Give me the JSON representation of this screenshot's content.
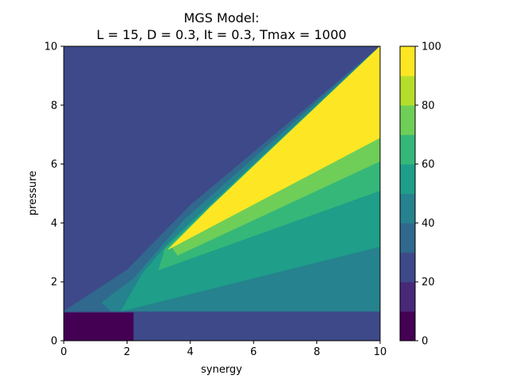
{
  "chart_data": {
    "type": "heatmap",
    "title_lines": [
      "MGS Model:",
      "L = 15, D = 0.3, It = 0.3, Tmax = 1000"
    ],
    "xlabel": "synergy",
    "ylabel": "pressure",
    "xlim": [
      0,
      10
    ],
    "ylim": [
      0,
      10
    ],
    "x_ticks": [
      "0",
      "2",
      "4",
      "6",
      "8",
      "10"
    ],
    "y_ticks": [
      "0",
      "2",
      "4",
      "6",
      "8",
      "10"
    ],
    "colorbar": {
      "range": [
        0,
        100
      ],
      "levels": [
        0,
        10,
        20,
        30,
        40,
        50,
        60,
        70,
        80,
        90,
        100
      ],
      "colors": [
        "#440154",
        "#482878",
        "#3e4989",
        "#31688e",
        "#26828e",
        "#1f9e89",
        "#35b779",
        "#6ece58",
        "#b5de2b",
        "#fde725"
      ],
      "tick_labels": [
        "0",
        "20",
        "40",
        "60",
        "80",
        "100"
      ]
    },
    "regions": [
      {
        "name": "background",
        "level_index": 2,
        "polygon": [
          [
            0,
            0
          ],
          [
            10,
            0
          ],
          [
            10,
            10
          ],
          [
            0,
            10
          ]
        ]
      },
      {
        "name": "low-pressure-corner",
        "level_index": 0,
        "polygon": [
          [
            0,
            0
          ],
          [
            2.2,
            0
          ],
          [
            2.2,
            0.95
          ],
          [
            0,
            0.95
          ]
        ]
      },
      {
        "name": "wedge-35",
        "level_index": 3,
        "polygon": [
          [
            0,
            1
          ],
          [
            10,
            1
          ],
          [
            10,
            10
          ],
          [
            4,
            4.6
          ],
          [
            2,
            2.4
          ],
          [
            0,
            1
          ]
        ]
      },
      {
        "name": "wedge-45",
        "level_index": 4,
        "polygon": [
          [
            1.5,
            1
          ],
          [
            10,
            1
          ],
          [
            10,
            10
          ],
          [
            3.8,
            4.1
          ],
          [
            2.2,
            2.1
          ],
          [
            1.2,
            1.3
          ]
        ]
      },
      {
        "name": "wedge-55",
        "level_index": 5,
        "polygon": [
          [
            1.8,
            1
          ],
          [
            10,
            3.2
          ],
          [
            10,
            10
          ],
          [
            3.3,
            3.3
          ],
          [
            2.5,
            2.3
          ]
        ]
      },
      {
        "name": "wedge-65",
        "level_index": 6,
        "polygon": [
          [
            3,
            2.4
          ],
          [
            10,
            5.1
          ],
          [
            10,
            10
          ],
          [
            3.2,
            3.1
          ]
        ]
      },
      {
        "name": "wedge-75",
        "level_index": 7,
        "polygon": [
          [
            3.6,
            2.9
          ],
          [
            10,
            6.1
          ],
          [
            10,
            10
          ],
          [
            3.4,
            3.2
          ]
        ]
      },
      {
        "name": "wedge-95",
        "level_index": 9,
        "polygon": [
          [
            3.3,
            3.1
          ],
          [
            10,
            6.9
          ],
          [
            10,
            9.85
          ],
          [
            4.6,
            4.5
          ]
        ]
      },
      {
        "name": "wedge-95-tip",
        "level_index": 9,
        "polygon": [
          [
            4.6,
            4.5
          ],
          [
            10,
            9.85
          ],
          [
            10,
            10
          ]
        ]
      }
    ]
  }
}
